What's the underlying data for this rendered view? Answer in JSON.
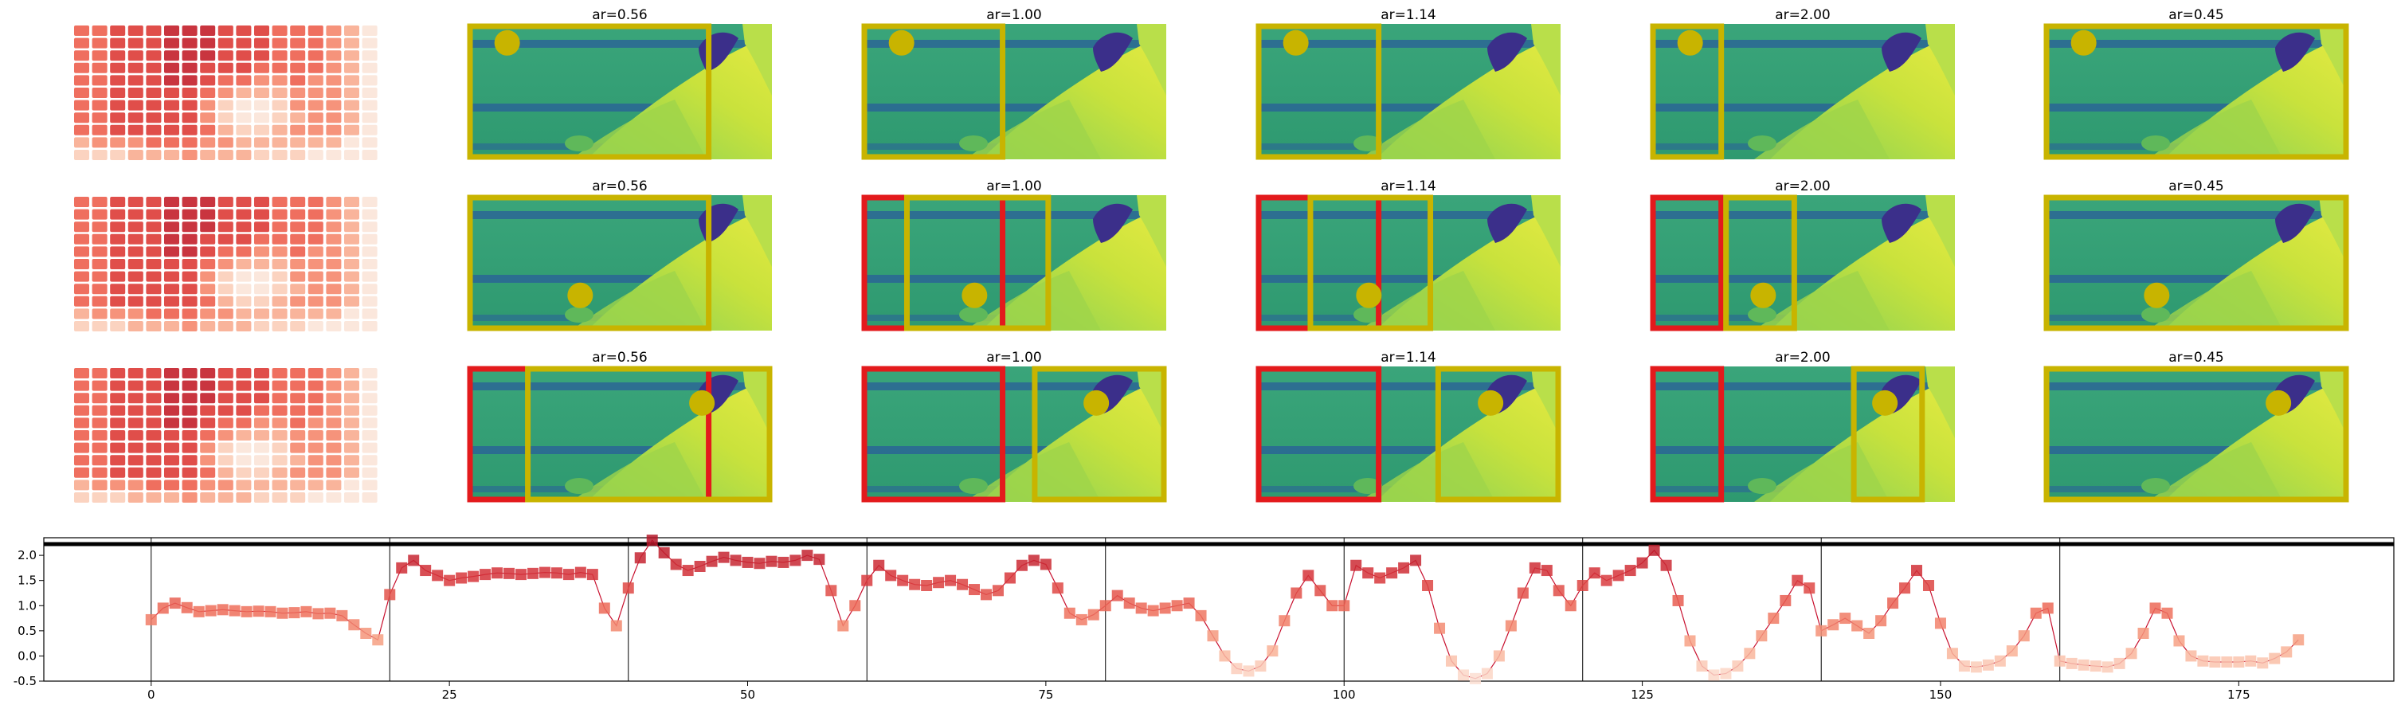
{
  "panels": {
    "titles": [
      "ar=0.56",
      "ar=1.00",
      "ar=1.14",
      "ar=2.00",
      "ar=0.45"
    ],
    "rows": 3,
    "box_colors": {
      "red": "#e31a1c",
      "yellow": "#c8b400",
      "dot": "#c8b400"
    }
  },
  "chart_data": {
    "type": "line",
    "title": "",
    "xlabel": "",
    "ylabel": "",
    "xlim": [
      -9,
      188
    ],
    "ylim": [
      -0.5,
      2.35
    ],
    "x_ticks": [
      0,
      25,
      50,
      75,
      100,
      125,
      150,
      175
    ],
    "y_ticks": [
      -0.5,
      0.0,
      0.5,
      1.0,
      1.5,
      2.0
    ],
    "segment_boundaries": [
      0,
      20,
      40,
      60,
      80,
      100,
      120,
      140,
      160
    ],
    "series": [
      {
        "values": [
          0.72,
          0.95,
          1.05,
          0.96,
          0.88,
          0.9,
          0.92,
          0.9,
          0.88,
          0.89,
          0.88,
          0.85,
          0.86,
          0.88,
          0.84,
          0.85,
          0.8,
          0.62,
          0.45,
          0.32,
          1.22,
          1.75,
          1.9,
          1.7,
          1.6,
          1.5,
          1.55,
          1.58,
          1.62,
          1.65,
          1.64,
          1.62,
          1.64,
          1.66,
          1.65,
          1.62,
          1.66,
          1.62,
          0.95,
          0.6,
          1.35,
          1.95,
          2.3,
          2.05,
          1.82,
          1.7,
          1.78,
          1.88,
          1.96,
          1.9,
          1.86,
          1.84,
          1.88,
          1.86,
          1.9,
          2.0,
          1.92,
          1.3,
          0.6,
          1.0,
          1.5,
          1.8,
          1.6,
          1.5,
          1.42,
          1.4,
          1.46,
          1.5,
          1.42,
          1.32,
          1.22,
          1.3,
          1.55,
          1.8,
          1.9,
          1.82,
          1.35,
          0.85,
          0.72,
          0.82,
          1.0,
          1.2,
          1.05,
          0.95,
          0.9,
          0.95,
          1.0,
          1.05,
          0.8,
          0.4,
          0.0,
          -0.25,
          -0.3,
          -0.2,
          0.1,
          0.7,
          1.25,
          1.6,
          1.3,
          1.0,
          1.0,
          1.8,
          1.65,
          1.55,
          1.65,
          1.75,
          1.9,
          1.4,
          0.55,
          -0.1,
          -0.38,
          -0.45,
          -0.35,
          0.0,
          0.6,
          1.25,
          1.75,
          1.7,
          1.3,
          1.0,
          1.4,
          1.65,
          1.5,
          1.6,
          1.7,
          1.85,
          2.1,
          1.8,
          1.1,
          0.3,
          -0.2,
          -0.38,
          -0.35,
          -0.2,
          0.05,
          0.4,
          0.75,
          1.1,
          1.5,
          1.35,
          0.5,
          0.62,
          0.75,
          0.6,
          0.45,
          0.7,
          1.05,
          1.35,
          1.7,
          1.4,
          0.65,
          0.05,
          -0.2,
          -0.22,
          -0.18,
          -0.1,
          0.1,
          0.4,
          0.85,
          0.95,
          -0.1,
          -0.15,
          -0.18,
          -0.2,
          -0.22,
          -0.15,
          0.05,
          0.45,
          0.95,
          0.85,
          0.3,
          0.0,
          -0.1,
          -0.12,
          -0.12,
          -0.12,
          -0.1,
          -0.14,
          -0.05,
          0.08,
          0.32
        ]
      }
    ]
  }
}
